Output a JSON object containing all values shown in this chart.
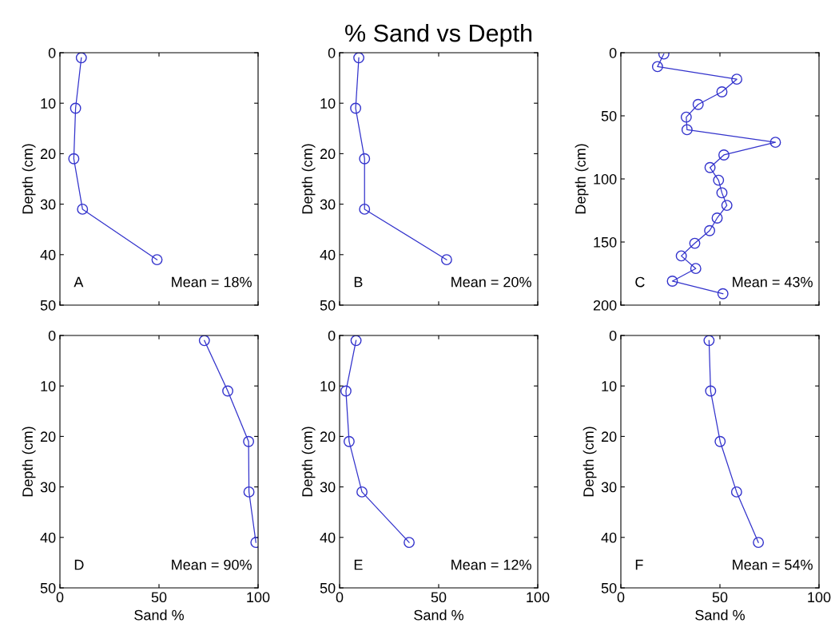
{
  "chart_data": [
    {
      "type": "line",
      "marker": "circle",
      "line_style": "solid",
      "grid": false,
      "tick_labels": "y",
      "ylabel": "Depth (cm)",
      "xlim": [
        0,
        100
      ],
      "xticks": [
        {
          "value": 0,
          "label": null
        },
        {
          "value": 50,
          "label": null
        },
        {
          "value": 100,
          "label": null
        }
      ],
      "ylim": [
        50,
        0
      ],
      "yticks": [
        0,
        10,
        20,
        30,
        40,
        50
      ],
      "annotations": [
        "A",
        "Mean = 18%"
      ],
      "series": [
        {
          "color": "#3333cc",
          "x": [
            10.8,
            7.9,
            7,
            11.4,
            49
          ],
          "values": [
            1,
            11,
            21,
            31,
            41
          ]
        }
      ]
    },
    {
      "type": "line",
      "title": "% Sand vs Depth",
      "marker": "circle",
      "line_style": "solid",
      "grid": false,
      "tick_labels": "y",
      "ylabel": "Depth (cm)",
      "xlim": [
        0,
        100
      ],
      "xticks": [
        {
          "value": 0,
          "label": null
        },
        {
          "value": 50,
          "label": null
        },
        {
          "value": 100,
          "label": null
        }
      ],
      "ylim": [
        50,
        0
      ],
      "yticks": [
        0,
        10,
        20,
        30,
        40,
        50
      ],
      "annotations": [
        "B",
        "Mean = 20%"
      ],
      "series": [
        {
          "color": "#3333cc",
          "x": [
            9.7,
            8.1,
            12.6,
            12.6,
            54
          ],
          "values": [
            1,
            11,
            21,
            31,
            41
          ]
        }
      ]
    },
    {
      "type": "line",
      "marker": "circle",
      "line_style": "solid",
      "grid": false,
      "tick_labels": "y",
      "ylabel": "Depth (cm)",
      "xlim": [
        0,
        100
      ],
      "xticks": [
        {
          "value": 0,
          "label": null
        },
        {
          "value": 50,
          "label": null
        },
        {
          "value": 100,
          "label": null
        }
      ],
      "ylim": [
        200,
        0
      ],
      "yticks": [
        0,
        50,
        100,
        150,
        200
      ],
      "annotations": [
        "C",
        "Mean = 43%"
      ],
      "series": [
        {
          "color": "#3333cc",
          "x": [
            21.7,
            18.5,
            58.5,
            51,
            39,
            33,
            33.4,
            78,
            52,
            45,
            49.3,
            51,
            53.5,
            48.6,
            44.8,
            37.3,
            30.5,
            37.8,
            26,
            51.5
          ],
          "values": [
            1,
            11,
            21,
            31,
            41,
            51,
            61,
            71,
            81,
            91,
            101,
            111,
            121,
            131,
            141,
            151,
            161,
            171,
            181,
            191
          ]
        }
      ]
    },
    {
      "type": "line",
      "marker": "circle",
      "line_style": "solid",
      "grid": false,
      "xlabel": "Sand %",
      "ylabel": "Depth (cm)",
      "xlim": [
        0,
        100
      ],
      "xticks": [
        0,
        50,
        100
      ],
      "ylim": [
        50,
        0
      ],
      "yticks": [
        0,
        10,
        20,
        30,
        40,
        50
      ],
      "annotations": [
        "D",
        "Mean = 90%"
      ],
      "series": [
        {
          "color": "#3333cc",
          "x": [
            72.9,
            84.7,
            95.2,
            95.4,
            98.9
          ],
          "values": [
            1,
            11,
            21,
            31,
            41
          ]
        }
      ]
    },
    {
      "type": "line",
      "marker": "circle",
      "line_style": "solid",
      "grid": false,
      "xlabel": "Sand %",
      "ylabel": "Depth (cm)",
      "xlim": [
        0,
        100
      ],
      "xticks": [
        0,
        50,
        100
      ],
      "ylim": [
        50,
        0
      ],
      "yticks": [
        0,
        10,
        20,
        30,
        40,
        50
      ],
      "annotations": [
        "E",
        "Mean = 12%"
      ],
      "series": [
        {
          "color": "#3333cc",
          "x": [
            8.3,
            3.2,
            4.8,
            11.3,
            35.1
          ],
          "values": [
            1,
            11,
            21,
            31,
            41
          ]
        }
      ]
    },
    {
      "type": "line",
      "marker": "circle",
      "line_style": "solid",
      "grid": false,
      "xlabel": "Sand %",
      "ylabel": "Depth (cm)",
      "xlim": [
        0,
        100
      ],
      "xticks": [
        0,
        50,
        100
      ],
      "ylim": [
        50,
        0
      ],
      "yticks": [
        0,
        10,
        20,
        30,
        40,
        50
      ],
      "annotations": [
        "F",
        "Mean = 54%"
      ],
      "series": [
        {
          "color": "#3333cc",
          "x": [
            44.5,
            45.3,
            50.1,
            58.4,
            69.4
          ],
          "values": [
            1,
            11,
            21,
            31,
            41
          ]
        }
      ]
    }
  ]
}
